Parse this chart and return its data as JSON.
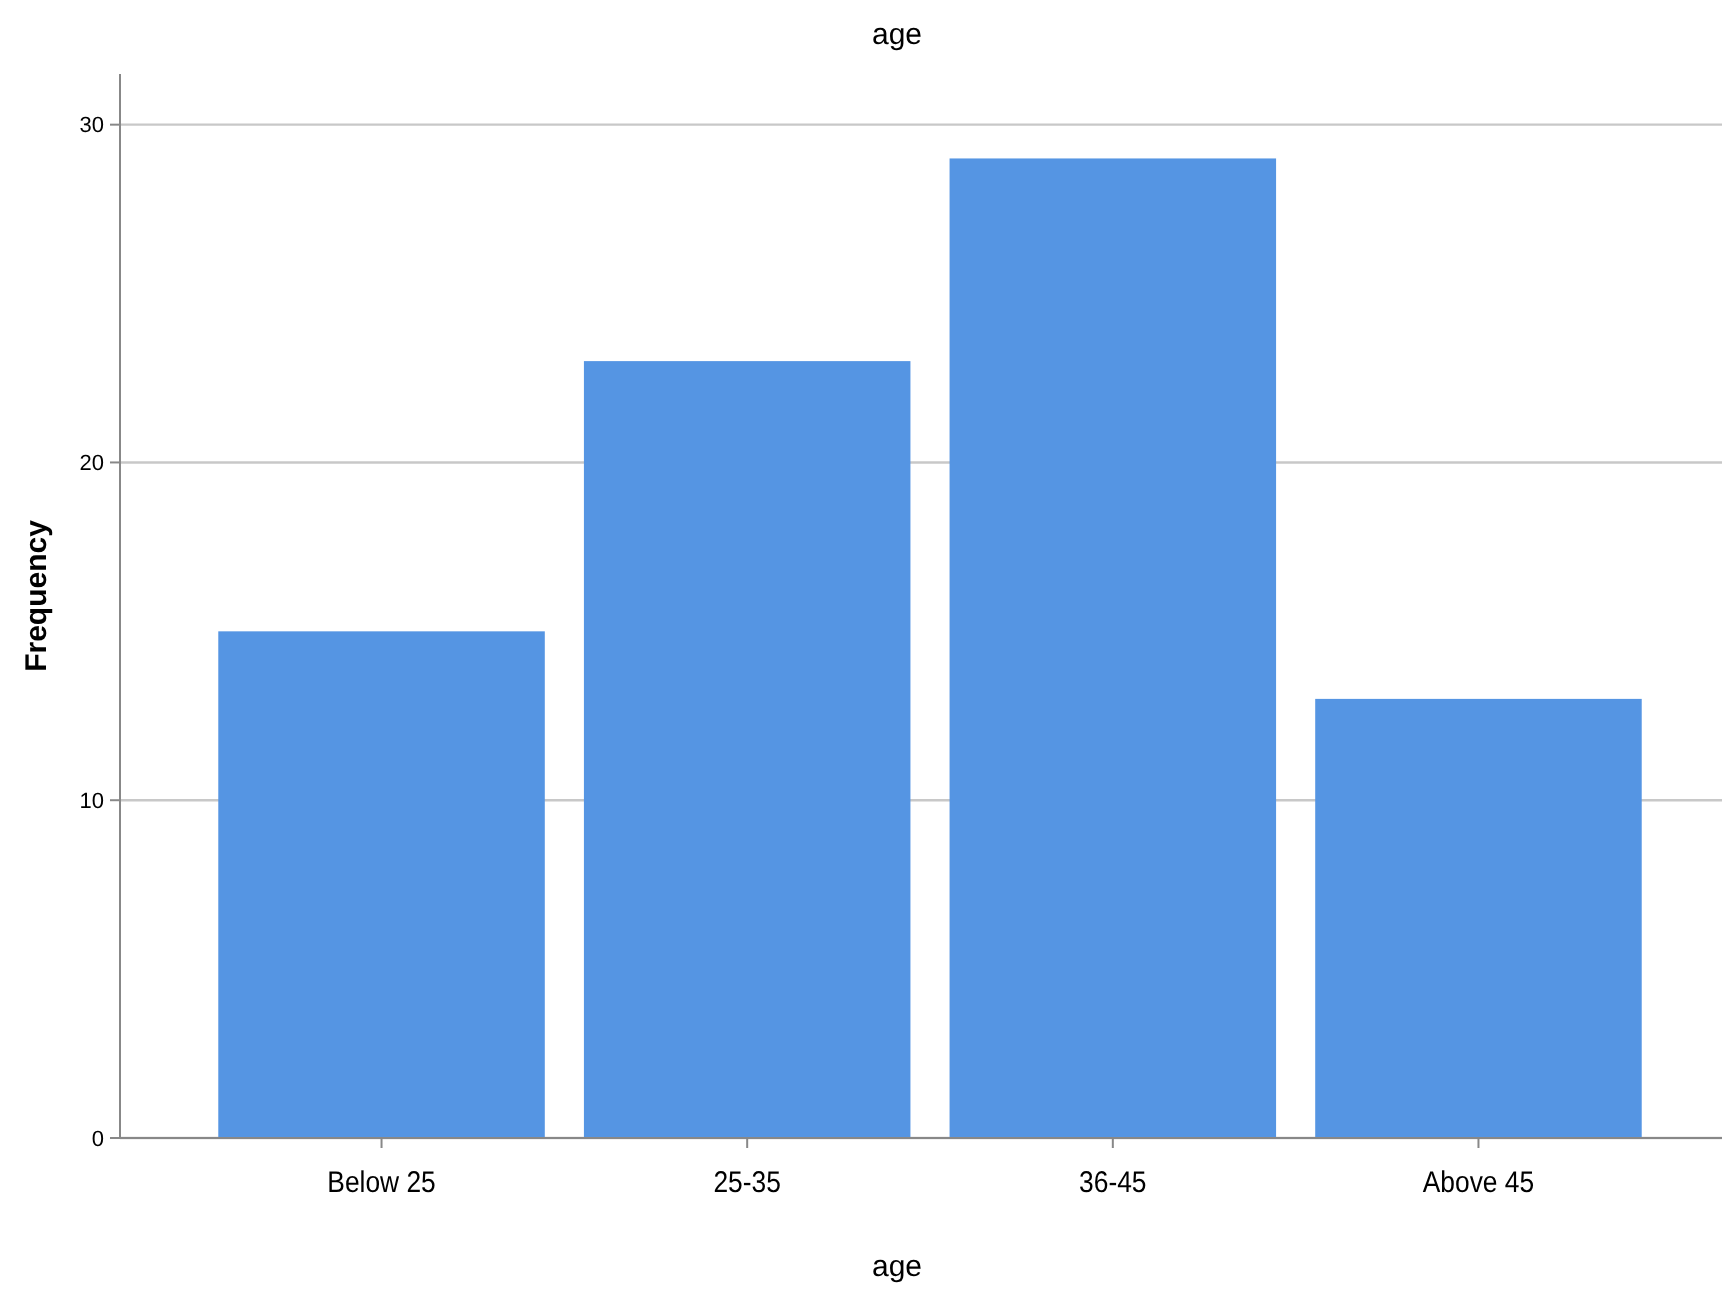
{
  "chart_data": {
    "type": "bar",
    "title": "age",
    "xlabel": "age",
    "ylabel": "Frequency",
    "categories": [
      "Below 25",
      "25-35",
      "36-45",
      "Above 45"
    ],
    "values": [
      15,
      23,
      29,
      13
    ],
    "color": "#5595e3",
    "ylim": [
      0,
      31.5
    ],
    "yticks": [
      0,
      10,
      20,
      30
    ],
    "grid": "y"
  }
}
